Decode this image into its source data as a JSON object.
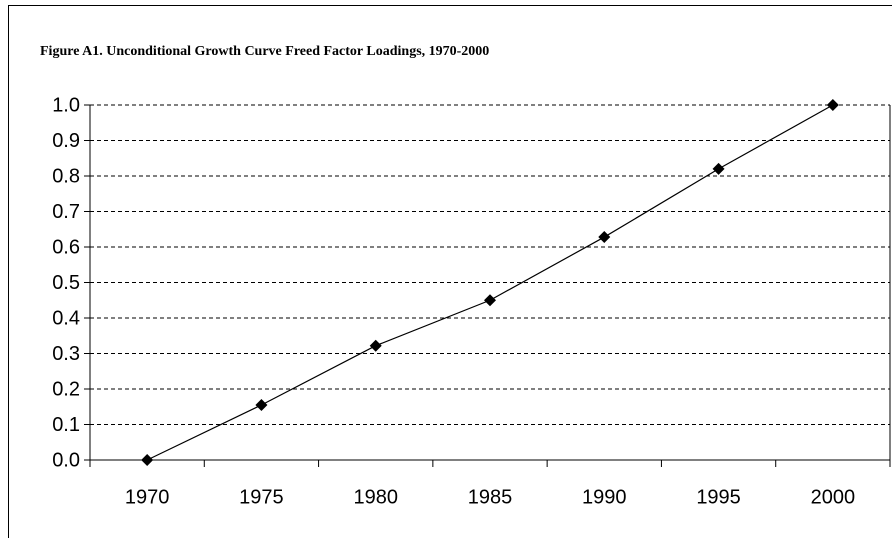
{
  "chart_data": {
    "type": "line",
    "title": "Figure A1. Unconditional Growth Curve Freed Factor Loadings, 1970-2000",
    "categories": [
      "1970",
      "1975",
      "1980",
      "1985",
      "1990",
      "1995",
      "2000"
    ],
    "values": [
      0,
      0.155,
      0.322,
      0.45,
      0.628,
      0.82,
      1.0
    ],
    "color": "#000000",
    "ylim": [
      0,
      1
    ],
    "yticks": [
      {
        "value": 0,
        "label": "0.0"
      },
      0.1,
      0.2,
      0.3,
      0.4,
      0.5,
      0.6,
      0.7,
      0.8,
      0.9,
      {
        "value": 1,
        "label": "1.0"
      }
    ],
    "grid": true
  }
}
